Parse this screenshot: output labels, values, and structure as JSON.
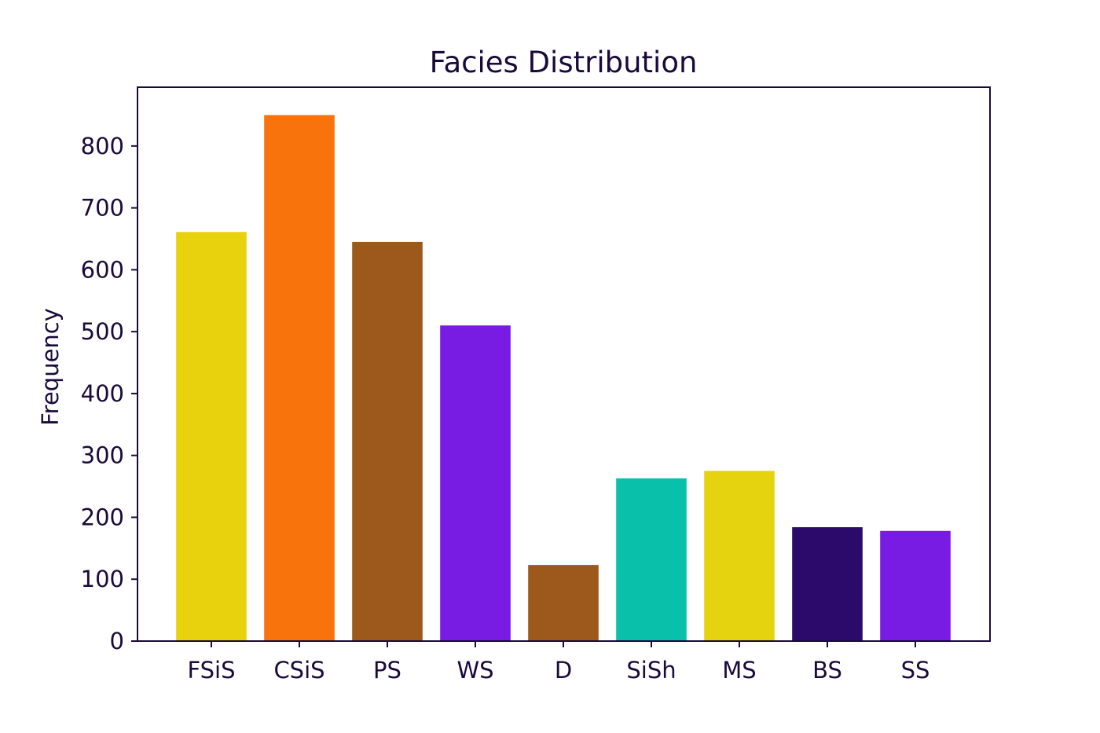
{
  "chart_data": {
    "type": "bar",
    "title": "Facies Distribution",
    "xlabel": "",
    "ylabel": "Frequency",
    "categories": [
      "FSiS",
      "CSiS",
      "PS",
      "WS",
      "D",
      "SiSh",
      "MS",
      "BS",
      "SS"
    ],
    "values": [
      661,
      850,
      645,
      510,
      123,
      263,
      275,
      184,
      178
    ],
    "colors": [
      "#E8D10D",
      "#F8730B",
      "#9D591B",
      "#781CE4",
      "#9D591B",
      "#09C0AA",
      "#E5D30F",
      "#2C0A6B",
      "#781CE4"
    ],
    "ylim": [
      0,
      895
    ],
    "yticks": [
      "0",
      "100",
      "200",
      "300",
      "400",
      "500",
      "600",
      "700",
      "800"
    ],
    "grid": false,
    "text_color": "#1A0A3A"
  }
}
